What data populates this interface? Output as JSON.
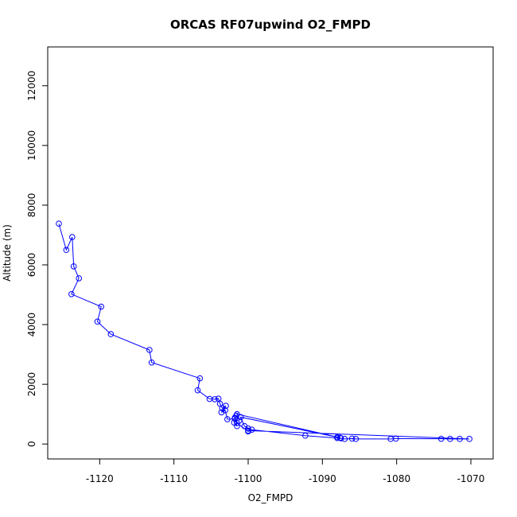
{
  "chart_data": {
    "type": "line",
    "title": "ORCAS RF07upwind O2_FMPD",
    "xlabel": "O2_FMPD",
    "ylabel": "Altitude (m)",
    "xlim": [
      -1127,
      -1067
    ],
    "ylim": [
      -500,
      13300
    ],
    "xticks": [
      -1120,
      -1110,
      -1100,
      -1090,
      -1080,
      -1070
    ],
    "yticks": [
      0,
      2000,
      4000,
      6000,
      8000,
      10000,
      12000
    ],
    "grid": false,
    "marker": "open-circle",
    "line_color": "#0000ff",
    "series": [
      {
        "x": [
          -1125.5,
          -1124.5,
          -1123.7,
          -1123.5,
          -1122.8,
          -1123.8,
          -1119.8,
          -1120.3,
          -1118.5,
          -1113.3,
          -1113.0,
          -1106.5,
          -1106.8,
          -1105.2,
          -1104.5,
          -1104.0,
          -1103.8,
          -1103.5,
          -1103.0,
          -1103.6,
          -1103.1,
          -1102.8,
          -1101.8,
          -1101.6,
          -1101.9,
          -1101.5,
          -1101.8,
          -1101.5,
          -1100.0,
          -1099.5,
          -1092.3,
          -1088.0,
          -1087.5,
          -1087.0,
          -1086.0,
          -1085.5,
          -1080.8,
          -1080.1,
          -1074.0,
          -1072.8,
          -1071.5,
          -1070.2,
          -1100.0,
          -1100.0,
          -1100.5,
          -1101.0,
          -1088.0,
          -1087.6,
          -1101.5,
          -1101.2
        ],
        "y": [
          7380,
          6500,
          6930,
          5950,
          5550,
          5020,
          4600,
          4100,
          3680,
          3150,
          2730,
          2200,
          1800,
          1510,
          1500,
          1520,
          1350,
          1200,
          1280,
          1060,
          1130,
          830,
          850,
          950,
          720,
          600,
          880,
          700,
          420,
          480,
          280,
          200,
          190,
          170,
          180,
          170,
          170,
          180,
          175,
          170,
          170,
          170,
          450,
          520,
          600,
          900,
          230,
          210,
          1000,
          780
        ]
      }
    ]
  }
}
